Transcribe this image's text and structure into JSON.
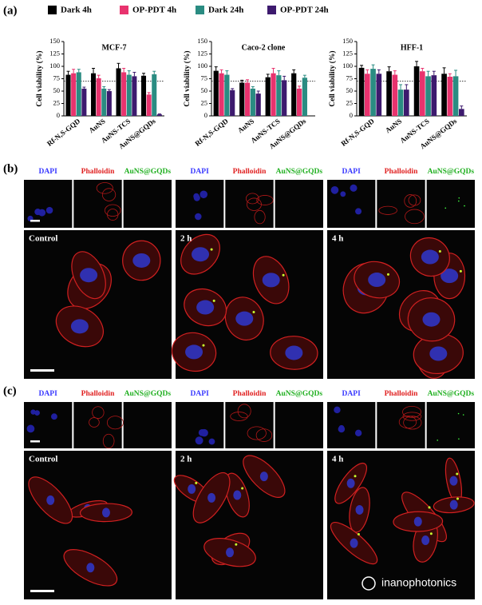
{
  "chart_data": [
    {
      "type": "bar",
      "title": "MCF-7",
      "y_label": "Cell viability (%)",
      "categories": [
        "Rf-N,S-GQD",
        "AuNS",
        "AuNS-TCS",
        "AuNS@GQDs"
      ],
      "series": [
        {
          "values": [
            83,
            86,
            96,
            81
          ],
          "errors": [
            7,
            10,
            10,
            5
          ]
        },
        {
          "values": [
            86,
            76,
            88,
            43
          ],
          "errors": [
            8,
            6,
            8,
            4
          ]
        },
        {
          "values": [
            88,
            55,
            83,
            84
          ],
          "errors": [
            6,
            4,
            8,
            6
          ]
        },
        {
          "values": [
            55,
            50,
            80,
            3
          ],
          "errors": [
            3,
            3,
            8,
            1
          ]
        }
      ],
      "ylim": [
        0,
        150
      ],
      "yticks": [
        0,
        25,
        50,
        75,
        100,
        125,
        150
      ],
      "reference_line": 70
    },
    {
      "type": "bar",
      "title": "Caco-2 clone",
      "y_label": "Cell viability (%)",
      "categories": [
        "Rf-N,S-GQD",
        "AuNS",
        "AuNS-TCS",
        "AuNS@GQDs"
      ],
      "series": [
        {
          "values": [
            91,
            67,
            78,
            86
          ],
          "errors": [
            8,
            5,
            6,
            7
          ]
        },
        {
          "values": [
            86,
            67,
            86,
            55
          ],
          "errors": [
            7,
            6,
            10,
            5
          ]
        },
        {
          "values": [
            83,
            55,
            82,
            77
          ],
          "errors": [
            8,
            4,
            9,
            5
          ]
        },
        {
          "values": [
            52,
            45,
            72,
            null
          ],
          "errors": [
            3,
            5,
            8,
            null
          ]
        }
      ],
      "ylim": [
        0,
        150
      ],
      "yticks": [
        0,
        25,
        50,
        75,
        100,
        125,
        150
      ],
      "reference_line": 70
    },
    {
      "type": "bar",
      "title": "HFF-1",
      "y_label": "Cell viability (%)",
      "categories": [
        "Rf-N,S-GQD",
        "AuNS",
        "AuNS-TCS",
        "AuNS@GQDs"
      ],
      "series": [
        {
          "values": [
            97,
            90,
            100,
            85
          ],
          "errors": [
            5,
            9,
            10,
            12
          ]
        },
        {
          "values": [
            85,
            83,
            90,
            79
          ],
          "errors": [
            8,
            8,
            6,
            6
          ]
        },
        {
          "values": [
            95,
            53,
            80,
            80
          ],
          "errors": [
            8,
            10,
            10,
            12
          ]
        },
        {
          "values": [
            85,
            53,
            82,
            14
          ],
          "errors": [
            8,
            10,
            8,
            6
          ]
        }
      ],
      "ylim": [
        0,
        150
      ],
      "yticks": [
        0,
        25,
        50,
        75,
        100,
        125,
        150
      ],
      "reference_line": 70
    }
  ],
  "legend": [
    {
      "name": "Dark 4h",
      "color": "#000000"
    },
    {
      "name": "OP-PDT 4h",
      "color": "#e8336e"
    },
    {
      "name": "Dark 24h",
      "color": "#2a8c82"
    },
    {
      "name": "OP-PDT 24h",
      "color": "#3d1a6e"
    }
  ],
  "panel_a_label": "(a)",
  "image_panels": [
    {
      "label": "(b)",
      "columns": [
        {
          "channels": [
            "DAPI",
            "Phalloidin",
            "AuNS@GQDs"
          ],
          "time": "Control"
        },
        {
          "channels": [
            "DAPI",
            "Phalloidin",
            "AuNS@GQDs"
          ],
          "time": "2 h"
        },
        {
          "channels": [
            "DAPI",
            "Phalloidin",
            "AuNS@GQDs"
          ],
          "time": "4 h"
        }
      ]
    },
    {
      "label": "(c)",
      "columns": [
        {
          "channels": [
            "DAPI",
            "Phalloidin",
            "AuNS@GQDs"
          ],
          "time": "Control"
        },
        {
          "channels": [
            "DAPI",
            "Phalloidin",
            "AuNS@GQDs"
          ],
          "time": "2 h"
        },
        {
          "channels": [
            "DAPI",
            "Phalloidin",
            "AuNS@GQDs"
          ],
          "time": "4 h"
        }
      ]
    }
  ],
  "watermark": "inanophotonics"
}
